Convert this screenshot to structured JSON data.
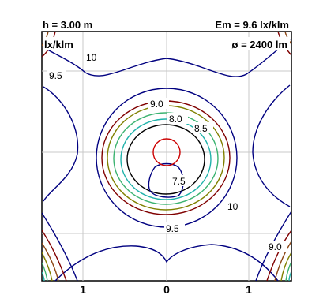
{
  "chart_data": {
    "type": "contour",
    "header": {
      "height_label": "h = 3.00 m",
      "em_label": "Em = 9.6 lx/klm",
      "unit_label": "lx/klm",
      "flux_label": "ø = 2400 lm"
    },
    "x_ticks": [
      "1",
      "0",
      "1"
    ],
    "x_tick_values": [
      -1,
      0,
      1
    ],
    "levels": [
      {
        "value": 7.5,
        "label": "7.5",
        "color": "#000080"
      },
      {
        "value": 8.0,
        "label": "8.0",
        "color": "#000000"
      },
      {
        "value": 8.5,
        "label": "8.5",
        "color": "#20b2aa"
      },
      {
        "value": 8.75,
        "label": "",
        "color": "#3cb371"
      },
      {
        "value": 9.0,
        "label": "9.0",
        "color": "#808000"
      },
      {
        "value": 9.25,
        "label": "",
        "color": "#8b4513"
      },
      {
        "value": 9.5,
        "label": "9.5",
        "color": "#800000"
      },
      {
        "value": 10,
        "label": "10",
        "color": "#000080"
      }
    ],
    "center_marker": {
      "color": "#cc0000"
    },
    "grid": true,
    "grid_color": "#c8c8c8"
  }
}
